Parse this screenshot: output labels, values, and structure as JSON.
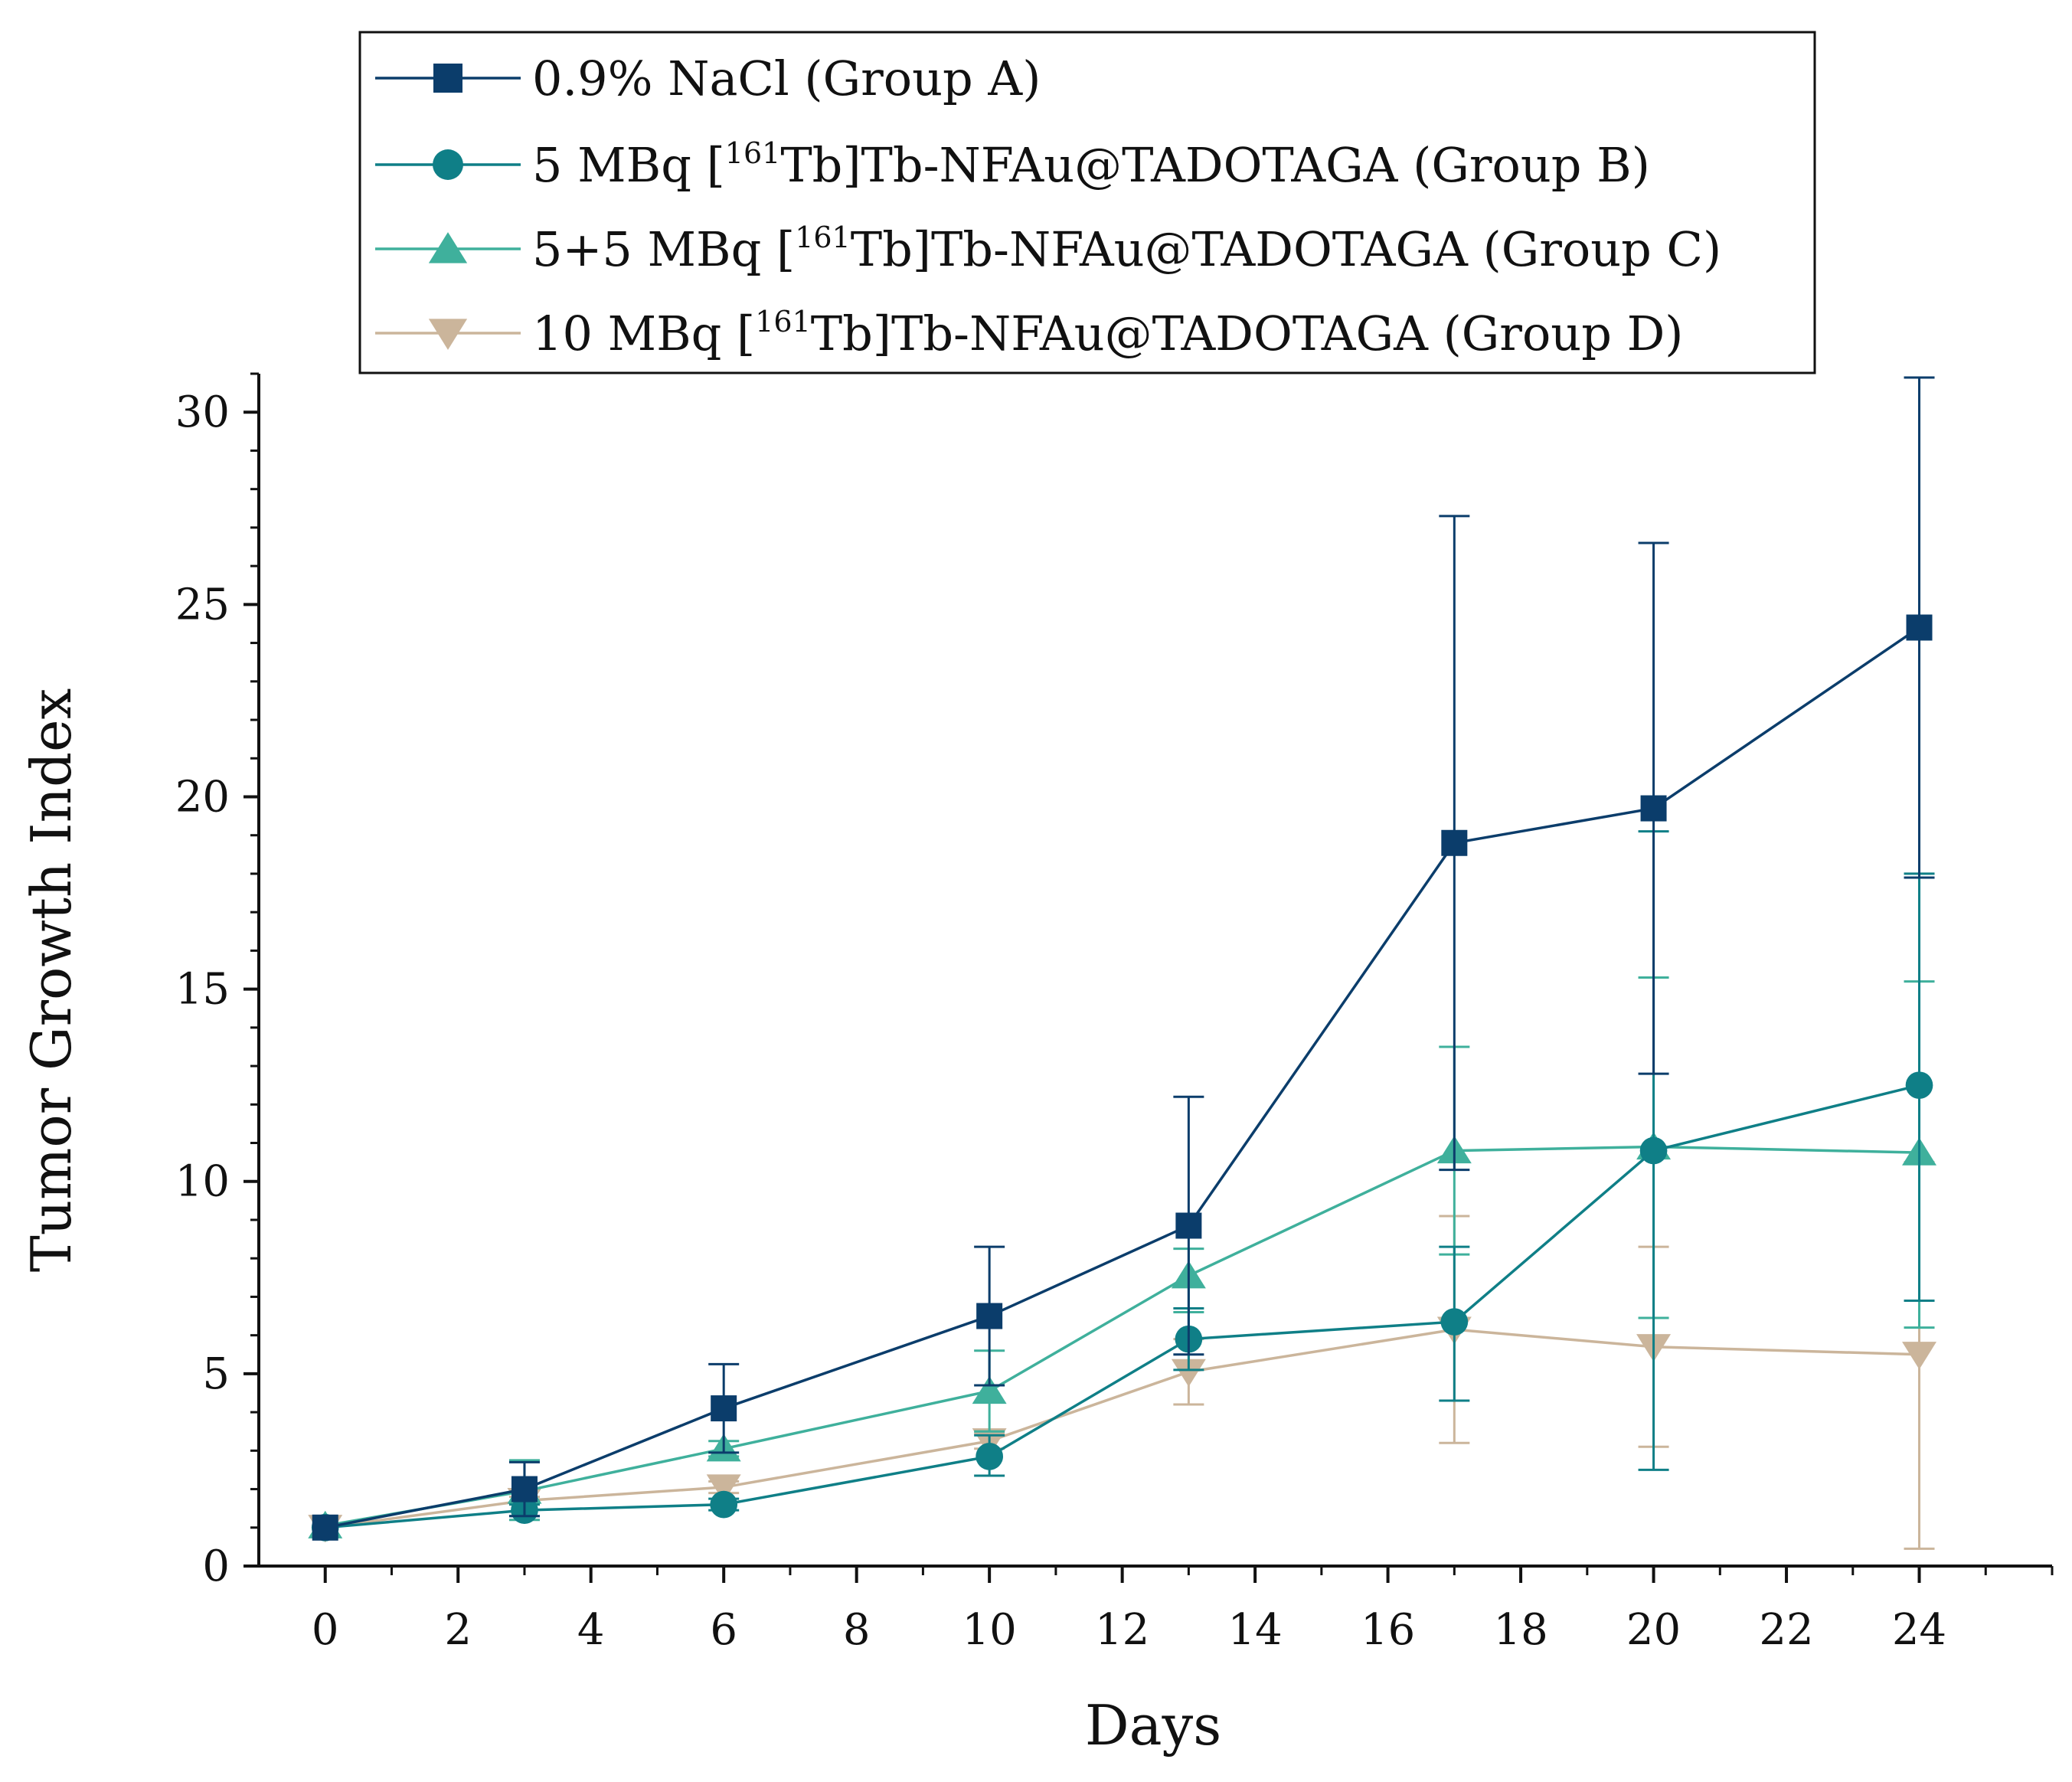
{
  "chart_data": {
    "type": "line",
    "title": "",
    "xlabel": "Days",
    "ylabel": "Tumor Growth Index",
    "xlim": [
      -1,
      26
    ],
    "ylim": [
      0,
      31
    ],
    "xticks": [
      0,
      2,
      4,
      6,
      8,
      10,
      12,
      14,
      16,
      18,
      20,
      22,
      24
    ],
    "yticks": [
      0,
      5,
      10,
      15,
      20,
      25,
      30
    ],
    "x": [
      0,
      3,
      6,
      10,
      13,
      17,
      20,
      24
    ],
    "legend_position": "top",
    "series": [
      {
        "name": "0.9% NaCl (Group A)",
        "legend_parts": [
          "0.9% NaCl (Group A)"
        ],
        "marker": "square",
        "color": "#0b3d6b",
        "values": [
          1.0,
          2.0,
          4.1,
          6.5,
          8.85,
          18.8,
          19.7,
          24.4
        ],
        "error_upper": [
          1.0,
          2.7,
          5.25,
          8.3,
          12.2,
          27.3,
          26.6,
          30.9
        ],
        "error_lower": [
          1.0,
          1.3,
          2.95,
          4.7,
          5.5,
          10.3,
          12.8,
          17.9
        ]
      },
      {
        "name": "5 MBq [161Tb]Tb-NFAu@TADOTAGA (Group B)",
        "legend_parts": [
          "5 MBq [",
          "161",
          "Tb]Tb-NFAu@TADOTAGA (Group B)"
        ],
        "marker": "circle",
        "color": "#0f7f87",
        "values": [
          1.0,
          1.45,
          1.6,
          2.85,
          5.9,
          6.35,
          10.8,
          12.5
        ],
        "error_upper": [
          1.0,
          1.6,
          1.75,
          3.4,
          6.7,
          8.3,
          19.1,
          18.0
        ],
        "error_lower": [
          1.0,
          1.3,
          1.45,
          2.35,
          5.1,
          4.3,
          2.5,
          6.9
        ]
      },
      {
        "name": "5+5 MBq [161Tb]Tb-NFAu@TADOTAGA (Group C)",
        "legend_parts": [
          "5+5 MBq [",
          "161",
          "Tb]Tb-NFAu@TADOTAGA (Group C)"
        ],
        "marker": "triangle-up",
        "color": "#3fb09c",
        "values": [
          1.05,
          1.95,
          3.05,
          4.55,
          7.55,
          10.8,
          10.9,
          10.75
        ],
        "error_upper": [
          1.05,
          2.75,
          3.25,
          5.6,
          8.25,
          13.5,
          15.3,
          15.2
        ],
        "error_lower": [
          1.05,
          1.2,
          2.85,
          3.5,
          6.6,
          8.1,
          6.45,
          6.2
        ]
      },
      {
        "name": "10 MBq [161Tb]Tb-NFAu@TADOTAGA (Group D)",
        "legend_parts": [
          "10 MBq [",
          "161",
          "Tb]Tb-NFAu@TADOTAGA (Group D)"
        ],
        "marker": "triangle-down",
        "color": "#cbb59b",
        "values": [
          1.0,
          1.7,
          2.05,
          3.25,
          5.05,
          6.15,
          5.7,
          5.5
        ],
        "error_upper": [
          1.0,
          1.8,
          2.2,
          3.45,
          5.9,
          9.1,
          8.3,
          10.5
        ],
        "error_lower": [
          1.0,
          1.6,
          1.9,
          3.05,
          4.2,
          3.2,
          3.1,
          0.45
        ]
      }
    ]
  }
}
